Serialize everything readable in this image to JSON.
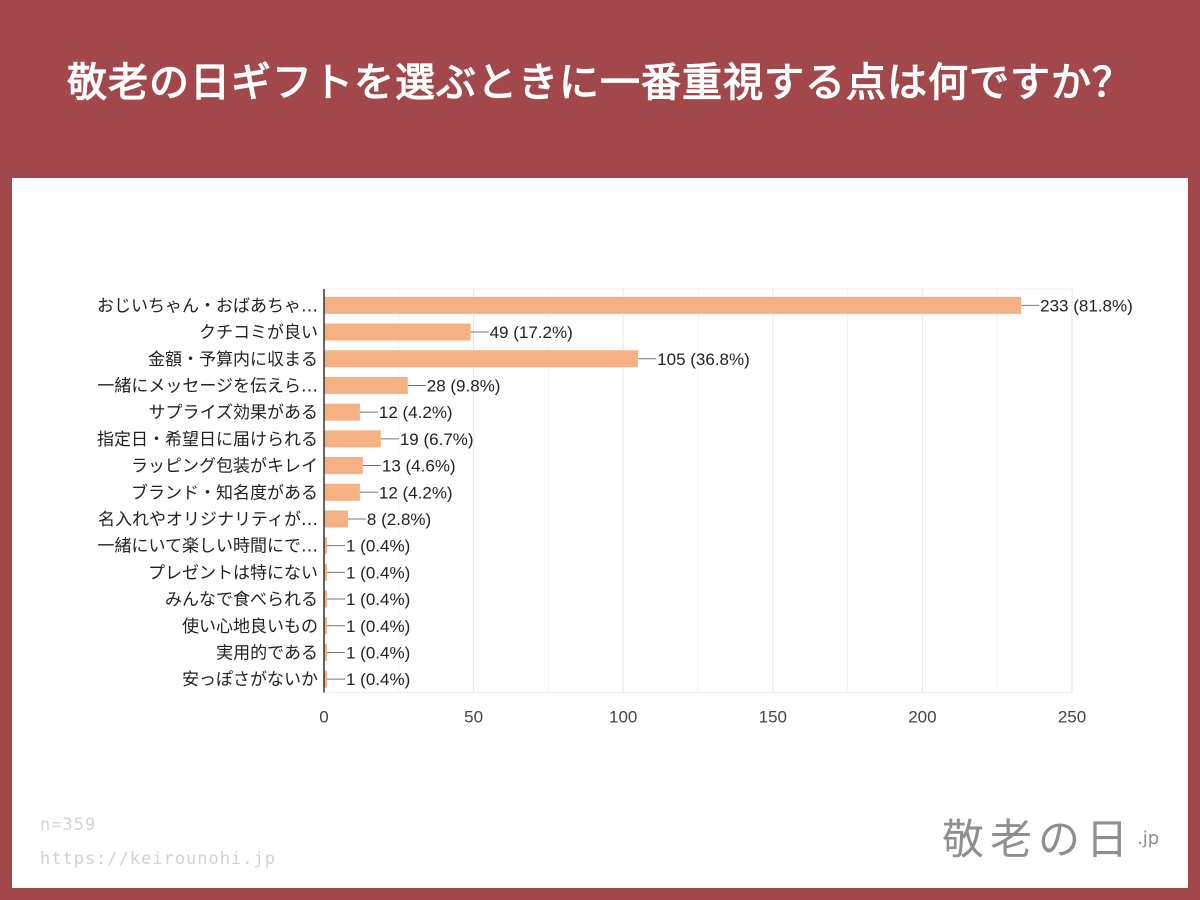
{
  "header": {
    "title": "敬老の日ギフトを選ぶときに一番重視する点は何ですか？"
  },
  "chart_data": {
    "type": "bar",
    "orientation": "horizontal",
    "categories": [
      "おじいちゃん・おばあちゃ…",
      "クチコミが良い",
      "金額・予算内に収まる",
      "一緒にメッセージを伝えら…",
      "サプライズ効果がある",
      "指定日・希望日に届けられる",
      "ラッピング包装がキレイ",
      "ブランド・知名度がある",
      "名入れやオリジナリティが…",
      "一緒にいて楽しい時間にで…",
      "プレゼントは特にない",
      "みんなで食べられる",
      "使い心地良いもの",
      "実用的である",
      "安っぽさがないか"
    ],
    "values": [
      233,
      49,
      105,
      28,
      12,
      19,
      13,
      12,
      8,
      1,
      1,
      1,
      1,
      1,
      1
    ],
    "data_labels": [
      "233 (81.8%)",
      "49 (17.2%)",
      "105 (36.8%)",
      "28 (9.8%)",
      "12 (4.2%)",
      "19 (6.7%)",
      "13 (4.6%)",
      "12 (4.2%)",
      "8 (2.8%)",
      "1 (0.4%)",
      "1 (0.4%)",
      "1 (0.4%)",
      "1 (0.4%)",
      "1 (0.4%)",
      "1 (0.4%)"
    ],
    "x_ticks": [
      0,
      50,
      100,
      150,
      200,
      250
    ],
    "xlim": [
      0,
      250
    ],
    "grid": true,
    "bar_color": "#f5b183"
  },
  "footer": {
    "sample_size": "n=359",
    "url": "https://keirounohi.jp"
  },
  "logo": {
    "main": "敬老の日",
    "suffix": ".jp"
  },
  "colors": {
    "background": "#a2474a",
    "card": "#ffffff",
    "bar": "#f5b183"
  }
}
